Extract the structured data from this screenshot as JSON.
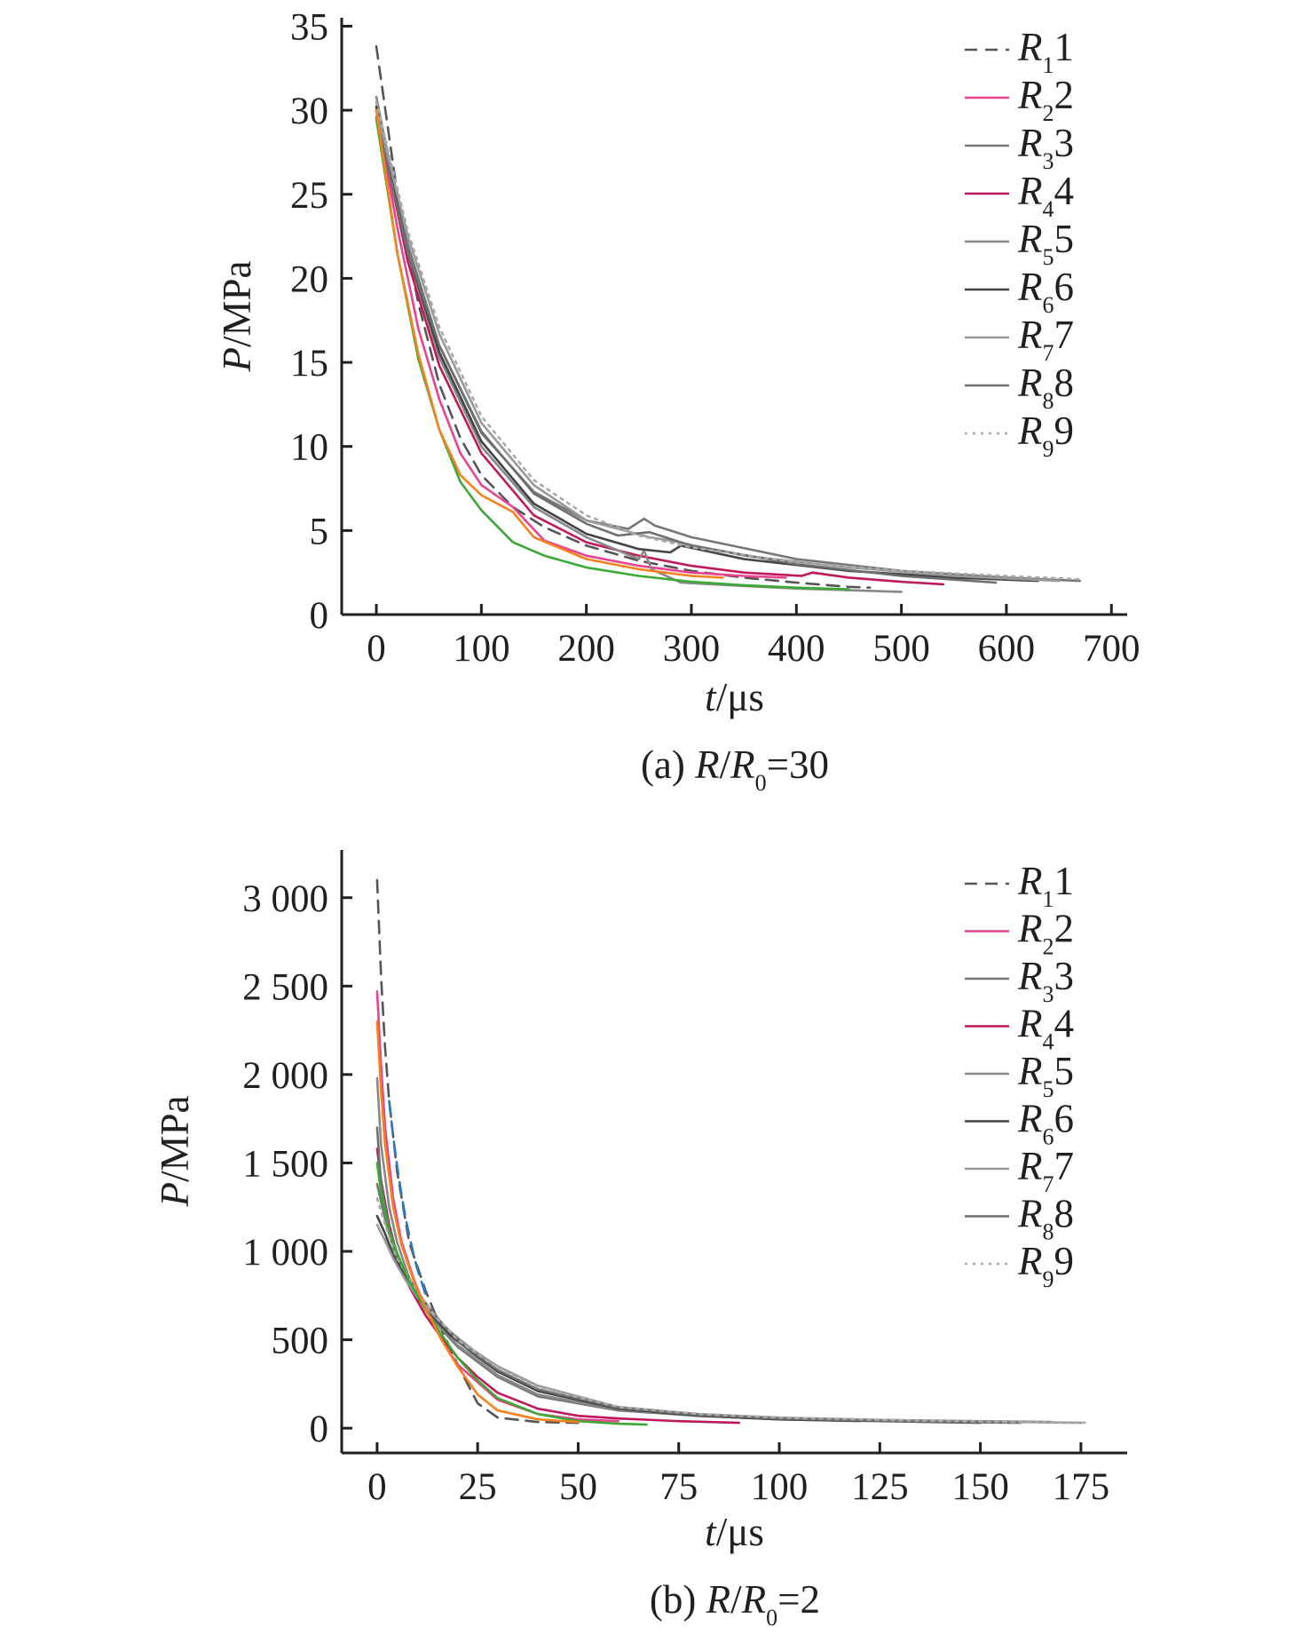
{
  "chart_data": [
    {
      "type": "line",
      "caption": {
        "prefix": "(a) ",
        "var": "R",
        "slash": "/",
        "var2": "R",
        "sub": "0",
        "suffix": "=30"
      },
      "xlabel": {
        "var": "t",
        "unit": "/μs"
      },
      "ylabel": {
        "var": "P",
        "unit": "/MPa"
      },
      "xlim": [
        -33,
        715
      ],
      "ylim": [
        0,
        35.5
      ],
      "x_ticks": [
        0,
        100,
        200,
        300,
        400,
        500,
        600,
        700
      ],
      "x_tick_labels": [
        "0",
        "100",
        "200",
        "300",
        "400",
        "500",
        "600",
        "700"
      ],
      "y_ticks": [
        0,
        5,
        10,
        15,
        20,
        25,
        30,
        35
      ],
      "y_tick_labels": [
        "0",
        "5",
        "10",
        "15",
        "20",
        "25",
        "30",
        "35"
      ],
      "legend_position": "top-right",
      "series": [
        {
          "name": "R",
          "sub": "1",
          "num": "1",
          "color": "#555555",
          "dash": "dashed",
          "show_legend": true,
          "x": [
            0,
            20,
            40,
            60,
            80,
            100,
            130,
            160,
            200,
            250,
            300,
            350,
            400,
            450,
            470
          ],
          "y": [
            33.8,
            25,
            18.5,
            13.7,
            10.5,
            8.3,
            6.4,
            5.2,
            4.1,
            3.2,
            2.6,
            2.2,
            1.9,
            1.65,
            1.6
          ]
        },
        {
          "name": "R",
          "sub": "2",
          "num": "2",
          "color": "#e8438f",
          "dash": "solid",
          "show_legend": true,
          "x": [
            0,
            20,
            40,
            60,
            80,
            100,
            130,
            160,
            200,
            250,
            300,
            350,
            390
          ],
          "y": [
            30,
            23,
            17,
            12.8,
            9.6,
            7.7,
            6.4,
            4.4,
            3.5,
            2.9,
            2.5,
            2.3,
            2.2
          ]
        },
        {
          "name": "R",
          "sub": "3",
          "num": "3",
          "color": "#777777",
          "dash": "solid",
          "show_legend": true,
          "x": [
            0,
            30,
            60,
            100,
            150,
            200,
            240,
            255,
            265,
            300,
            400,
            500,
            600,
            670
          ],
          "y": [
            30.5,
            22,
            16,
            10.8,
            7.3,
            5.6,
            5.1,
            5.7,
            5.3,
            4.6,
            3.3,
            2.6,
            2.2,
            2.0
          ]
        },
        {
          "name": "R",
          "sub": "4",
          "num": "4",
          "color": "#c0185a",
          "dash": "solid",
          "show_legend": true,
          "x": [
            0,
            30,
            60,
            100,
            150,
            200,
            250,
            300,
            350,
            405,
            415,
            450,
            500,
            540
          ],
          "y": [
            30,
            21,
            14.8,
            9.6,
            5.9,
            4.3,
            3.5,
            2.9,
            2.5,
            2.3,
            2.5,
            2.2,
            1.95,
            1.8
          ]
        },
        {
          "name": "R",
          "sub": "5",
          "num": "5",
          "color": "#888888",
          "dash": "solid",
          "show_legend": true,
          "x": [
            0,
            30,
            60,
            100,
            150,
            200,
            250,
            255,
            262,
            290,
            350,
            400,
            450,
            500
          ],
          "y": [
            30.8,
            21.5,
            15.3,
            10,
            6.4,
            4.6,
            3.3,
            3.8,
            2.7,
            1.9,
            1.7,
            1.55,
            1.45,
            1.35
          ]
        },
        {
          "name": "R",
          "sub": "6",
          "num": "6",
          "color": "#444444",
          "dash": "solid",
          "show_legend": true,
          "x": [
            0,
            30,
            60,
            100,
            150,
            200,
            250,
            280,
            290,
            350,
            450,
            550,
            630
          ],
          "y": [
            30.2,
            21.5,
            15.6,
            10.3,
            6.6,
            4.8,
            3.9,
            3.7,
            4.1,
            3.3,
            2.6,
            2.2,
            2.0
          ]
        },
        {
          "name": "R",
          "sub": "7",
          "num": "7",
          "color": "#999999",
          "dash": "solid",
          "show_legend": true,
          "x": [
            0,
            30,
            60,
            100,
            150,
            200,
            260,
            280,
            350,
            450,
            550,
            650
          ],
          "y": [
            30,
            22.5,
            16.7,
            11.4,
            7.7,
            5.6,
            4.6,
            4.4,
            3.5,
            2.8,
            2.3,
            2.0
          ]
        },
        {
          "name": "R",
          "sub": "8",
          "num": "8",
          "color": "#6f6f6f",
          "dash": "solid",
          "show_legend": true,
          "x": [
            0,
            30,
            60,
            100,
            150,
            200,
            230,
            260,
            300,
            400,
            500,
            590
          ],
          "y": [
            29.6,
            21.5,
            16,
            10.9,
            7.2,
            5.4,
            4.7,
            4.9,
            4.1,
            3.0,
            2.3,
            1.9
          ]
        },
        {
          "name": "R",
          "sub": "9",
          "num": "9",
          "color": "#aaaaaa",
          "dash": "dotted",
          "show_legend": true,
          "x": [
            0,
            30,
            60,
            100,
            150,
            200,
            250,
            300,
            400,
            500,
            600,
            670
          ],
          "y": [
            30.5,
            22.8,
            17.1,
            11.8,
            8.0,
            5.9,
            4.7,
            4.0,
            3.1,
            2.6,
            2.3,
            2.1
          ]
        },
        {
          "name": "",
          "color": "#3aaa35",
          "dash": "solid",
          "show_legend": false,
          "x": [
            0,
            20,
            40,
            60,
            80,
            100,
            130,
            160,
            200,
            250,
            300,
            350,
            400,
            450
          ],
          "y": [
            29.5,
            21.5,
            15.2,
            11,
            7.9,
            6.2,
            4.3,
            3.5,
            2.8,
            2.3,
            1.95,
            1.75,
            1.6,
            1.5
          ]
        },
        {
          "name": "",
          "color": "#f5821f",
          "dash": "solid",
          "show_legend": false,
          "x": [
            0,
            20,
            40,
            60,
            80,
            100,
            130,
            150,
            200,
            250,
            300,
            330
          ],
          "y": [
            30,
            21.5,
            15.5,
            11,
            8.3,
            7.1,
            6.1,
            4.6,
            3.3,
            2.7,
            2.3,
            2.2
          ]
        }
      ]
    },
    {
      "type": "line",
      "caption": {
        "prefix": "(b) ",
        "var": "R",
        "slash": "/",
        "var2": "R",
        "sub": "0",
        "suffix": "=2"
      },
      "xlabel": {
        "var": "t",
        "unit": "/μs"
      },
      "ylabel": {
        "var": "P",
        "unit": "/MPa"
      },
      "xlim": [
        -8.8,
        186.5
      ],
      "ylim": [
        -140,
        3270
      ],
      "x_ticks": [
        0,
        25,
        50,
        75,
        100,
        125,
        150,
        175
      ],
      "x_tick_labels": [
        "0",
        "25",
        "50",
        "75",
        "100",
        "125",
        "150",
        "175"
      ],
      "y_ticks": [
        0,
        500,
        1000,
        1500,
        2000,
        2500,
        3000
      ],
      "y_tick_labels": [
        "0",
        "500",
        "1 000",
        "1 500",
        "2 000",
        "2 500",
        "3 000"
      ],
      "legend_position": "top-right",
      "series": [
        {
          "name": "R",
          "sub": "1",
          "num": "1",
          "color": "#555555",
          "dash": "dashed",
          "show_legend": true,
          "x": [
            0,
            1,
            2,
            3,
            5,
            8,
            12,
            16,
            20,
            25,
            30,
            40,
            50
          ],
          "y": [
            3100,
            2550,
            2150,
            1850,
            1450,
            1050,
            780,
            560,
            360,
            140,
            60,
            35,
            30
          ]
        },
        {
          "name": "R",
          "sub": "2",
          "num": "2",
          "color": "#e8438f",
          "dash": "solid",
          "show_legend": true,
          "x": [
            0,
            1,
            2,
            4,
            6,
            9,
            12,
            16,
            20,
            30,
            40,
            50,
            60
          ],
          "y": [
            2470,
            2050,
            1700,
            1300,
            1060,
            850,
            680,
            500,
            360,
            160,
            80,
            50,
            40
          ]
        },
        {
          "name": "R",
          "sub": "3",
          "num": "3",
          "color": "#777777",
          "dash": "solid",
          "show_legend": true,
          "x": [
            0,
            2,
            4,
            6,
            9,
            12,
            16,
            20,
            30,
            40,
            60,
            80,
            100,
            130,
            168
          ],
          "y": [
            1380,
            1180,
            1020,
            900,
            770,
            680,
            560,
            460,
            290,
            180,
            100,
            70,
            55,
            45,
            35
          ]
        },
        {
          "name": "R",
          "sub": "4",
          "num": "4",
          "color": "#c0185a",
          "dash": "solid",
          "show_legend": true,
          "x": [
            0,
            1,
            3,
            5,
            8,
            12,
            16,
            20,
            25,
            30,
            40,
            50,
            60,
            75,
            90
          ],
          "y": [
            1580,
            1400,
            1150,
            980,
            800,
            640,
            510,
            400,
            290,
            200,
            110,
            70,
            55,
            40,
            30
          ]
        },
        {
          "name": "R",
          "sub": "5",
          "num": "5",
          "color": "#888888",
          "dash": "solid",
          "show_legend": true,
          "x": [
            0,
            1,
            3,
            5,
            8,
            12,
            16,
            20,
            30,
            40,
            60,
            80,
            100,
            120
          ],
          "y": [
            1980,
            1600,
            1250,
            1050,
            850,
            690,
            570,
            470,
            300,
            190,
            105,
            70,
            50,
            40
          ]
        },
        {
          "name": "R",
          "sub": "6",
          "num": "6",
          "color": "#444444",
          "dash": "solid",
          "show_legend": true,
          "x": [
            0,
            2,
            4,
            7,
            10,
            14,
            18,
            24,
            30,
            40,
            60,
            80,
            100,
            150
          ],
          "y": [
            1200,
            1100,
            980,
            850,
            740,
            630,
            530,
            420,
            320,
            210,
            110,
            70,
            50,
            30
          ]
        },
        {
          "name": "R",
          "sub": "7",
          "num": "7",
          "color": "#999999",
          "dash": "solid",
          "show_legend": true,
          "x": [
            0,
            2,
            4,
            7,
            10,
            14,
            18,
            24,
            30,
            40,
            60,
            80,
            100,
            140,
            175
          ],
          "y": [
            1150,
            1060,
            960,
            840,
            740,
            640,
            550,
            440,
            350,
            240,
            120,
            80,
            60,
            40,
            30
          ]
        },
        {
          "name": "R",
          "sub": "8",
          "num": "8",
          "color": "#6f6f6f",
          "dash": "solid",
          "show_legend": true,
          "x": [
            0,
            1,
            3,
            6,
            9,
            13,
            17,
            22,
            30,
            40,
            60,
            80,
            100,
            130,
            160
          ],
          "y": [
            1700,
            1380,
            1120,
            920,
            800,
            680,
            570,
            460,
            330,
            220,
            115,
            75,
            55,
            40,
            30
          ]
        },
        {
          "name": "R",
          "sub": "9",
          "num": "9",
          "color": "#aaaaaa",
          "dash": "dotted",
          "show_legend": true,
          "x": [
            0,
            2,
            5,
            10,
            15,
            20,
            30,
            40,
            60,
            80,
            100,
            130,
            160,
            176
          ],
          "y": [
            1300,
            1150,
            960,
            770,
            620,
            500,
            340,
            230,
            120,
            80,
            60,
            45,
            35,
            32
          ]
        },
        {
          "name": "",
          "color": "#3aaa35",
          "dash": "solid",
          "show_legend": false,
          "x": [
            0,
            1,
            3,
            5,
            8,
            12,
            16,
            20,
            25,
            30,
            40,
            50,
            60,
            67
          ],
          "y": [
            1500,
            1330,
            1120,
            990,
            830,
            670,
            530,
            400,
            270,
            170,
            80,
            40,
            25,
            20
          ]
        },
        {
          "name": "",
          "color": "#f5821f",
          "dash": "solid",
          "show_legend": false,
          "x": [
            0,
            1,
            2,
            4,
            6,
            9,
            12,
            16,
            20,
            25,
            30,
            40,
            50
          ],
          "y": [
            2300,
            1900,
            1600,
            1250,
            1040,
            840,
            680,
            500,
            350,
            190,
            100,
            50,
            35
          ]
        },
        {
          "name": "",
          "color": "#2e78c2",
          "dash": "dashed",
          "show_legend": false,
          "x": [
            3,
            4,
            5,
            6,
            7,
            8,
            9,
            10,
            12
          ],
          "y": [
            1850,
            1650,
            1480,
            1330,
            1200,
            1090,
            990,
            900,
            760
          ]
        }
      ]
    }
  ]
}
